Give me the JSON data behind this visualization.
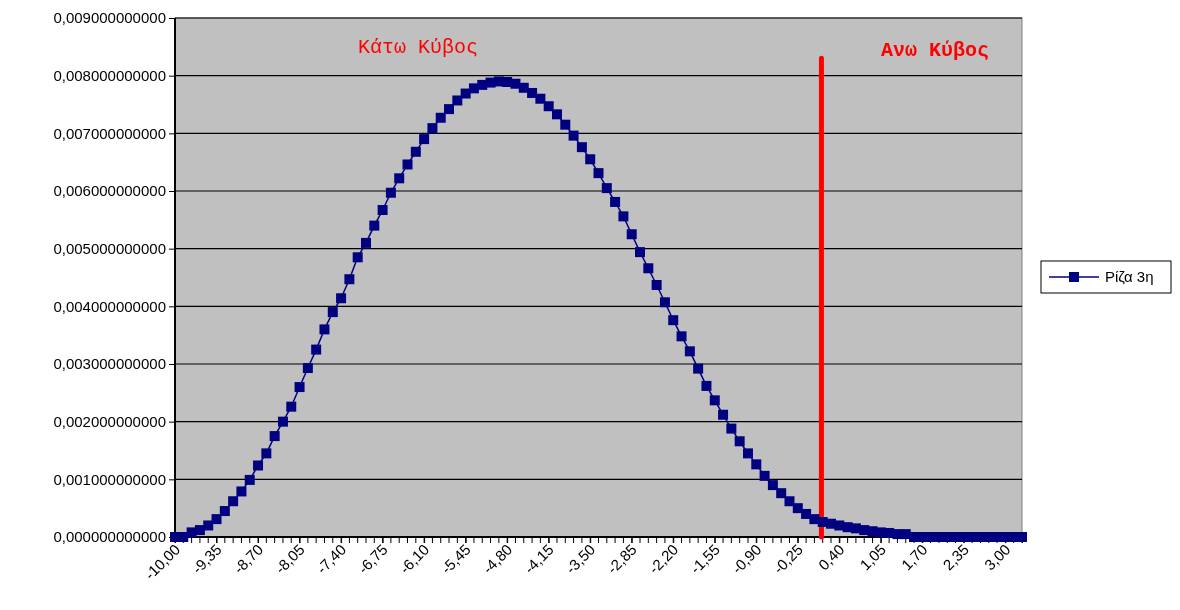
{
  "chart_data": {
    "type": "line",
    "x": [
      -10,
      -9.87,
      -9.74,
      -9.61,
      -9.48,
      -9.35,
      -9.22,
      -9.09,
      -8.96,
      -8.83,
      -8.7,
      -8.57,
      -8.44,
      -8.31,
      -8.18,
      -8.05,
      -7.92,
      -7.79,
      -7.66,
      -7.53,
      -7.4,
      -7.27,
      -7.14,
      -7.01,
      -6.88,
      -6.75,
      -6.62,
      -6.49,
      -6.36,
      -6.23,
      -6.1,
      -5.97,
      -5.84,
      -5.71,
      -5.58,
      -5.45,
      -5.32,
      -5.19,
      -5.06,
      -4.93,
      -4.8,
      -4.67,
      -4.54,
      -4.41,
      -4.28,
      -4.15,
      -4.02,
      -3.89,
      -3.76,
      -3.63,
      -3.5,
      -3.37,
      -3.24,
      -3.11,
      -2.98,
      -2.85,
      -2.72,
      -2.59,
      -2.46,
      -2.33,
      -2.2,
      -2.07,
      -1.94,
      -1.81,
      -1.68,
      -1.55,
      -1.42,
      -1.29,
      -1.16,
      -1.03,
      -0.9,
      -0.77,
      -0.64,
      -0.51,
      -0.38,
      -0.25,
      -0.12,
      0.01,
      0.14,
      0.27,
      0.4,
      0.53,
      0.66,
      0.79,
      0.92,
      1.05,
      1.18,
      1.31,
      1.44,
      1.57,
      1.7,
      1.83,
      1.96,
      2.09,
      2.22,
      2.35,
      2.48,
      2.61,
      2.74,
      2.87,
      3,
      3.13,
      3.26
    ],
    "series": [
      {
        "name": "Ρίζα 3η",
        "color": "#000080",
        "values": [
          0,
          0,
          8e-05,
          0.00012,
          0.0002,
          0.00031,
          0.00045,
          0.00062,
          0.00079,
          0.00099,
          0.00124,
          0.00145,
          0.00175,
          0.002,
          0.00226,
          0.0026,
          0.00293,
          0.00325,
          0.0036,
          0.0039,
          0.00414,
          0.00447,
          0.00485,
          0.0051,
          0.0054,
          0.00567,
          0.00597,
          0.00622,
          0.00646,
          0.00668,
          0.0069,
          0.00709,
          0.00727,
          0.00742,
          0.00757,
          0.00769,
          0.00778,
          0.00784,
          0.00788,
          0.0079,
          0.00789,
          0.00786,
          0.00779,
          0.0077,
          0.0076,
          0.00747,
          0.00733,
          0.00715,
          0.00696,
          0.00676,
          0.00655,
          0.00631,
          0.00605,
          0.00581,
          0.00556,
          0.00525,
          0.00494,
          0.00466,
          0.00437,
          0.00407,
          0.00376,
          0.00348,
          0.00322,
          0.00292,
          0.00262,
          0.00237,
          0.00212,
          0.00188,
          0.00166,
          0.00145,
          0.00126,
          0.00106,
          0.0009,
          0.00076,
          0.00062,
          0.0005,
          0.0004,
          0.00031,
          0.00026,
          0.00023,
          0.0002,
          0.00017,
          0.00015,
          0.00012,
          0.0001,
          8e-05,
          7e-05,
          5e-05,
          5e-05,
          0,
          0,
          0,
          0,
          0,
          0,
          0,
          0,
          0,
          0,
          0,
          0,
          0,
          0
        ]
      }
    ],
    "xlim": [
      -10,
      3.26
    ],
    "xticks": [
      {
        "value": -10,
        "label": "-10,00"
      },
      {
        "value": -9.35,
        "label": "-9,35"
      },
      {
        "value": -8.7,
        "label": "-8,70"
      },
      {
        "value": -8.05,
        "label": "-8,05"
      },
      {
        "value": -7.4,
        "label": "-7,40"
      },
      {
        "value": -6.75,
        "label": "-6,75"
      },
      {
        "value": -6.1,
        "label": "-6,10"
      },
      {
        "value": -5.45,
        "label": "-5,45"
      },
      {
        "value": -4.8,
        "label": "-4,80"
      },
      {
        "value": -4.15,
        "label": "-4,15"
      },
      {
        "value": -3.5,
        "label": "-3,50"
      },
      {
        "value": -2.85,
        "label": "-2,85"
      },
      {
        "value": -2.2,
        "label": "-2,20"
      },
      {
        "value": -1.55,
        "label": "-1,55"
      },
      {
        "value": -0.9,
        "label": "-0,90"
      },
      {
        "value": -0.25,
        "label": "-0,25"
      },
      {
        "value": 0.4,
        "label": "0,40"
      },
      {
        "value": 1.05,
        "label": "1,05"
      },
      {
        "value": 1.7,
        "label": "1,70"
      },
      {
        "value": 2.35,
        "label": "2,35"
      },
      {
        "value": 3,
        "label": "3,00"
      }
    ],
    "ylim": [
      0,
      0.009
    ],
    "yticks": [
      {
        "value": 0,
        "label": "0,000000000000"
      },
      {
        "value": 0.001,
        "label": "0,001000000000"
      },
      {
        "value": 0.002,
        "label": "0,002000000000"
      },
      {
        "value": 0.003,
        "label": "0,003000000000"
      },
      {
        "value": 0.004,
        "label": "0,004000000000"
      },
      {
        "value": 0.005,
        "label": "0,005000000000"
      },
      {
        "value": 0.006,
        "label": "0,006000000000"
      },
      {
        "value": 0.007,
        "label": "0,007000000000"
      },
      {
        "value": 0.008,
        "label": "0,008000000000"
      },
      {
        "value": 0.009,
        "label": "0,009000000000"
      }
    ],
    "ref_lines": [
      {
        "axis": "x",
        "value": 0.12,
        "color": "#ff0000"
      }
    ],
    "annotations": [
      "Κάτω Κύβος",
      "Ανω Κύβος"
    ],
    "grid": "y",
    "legend": "right",
    "marker": "square",
    "line_style": "solid"
  }
}
